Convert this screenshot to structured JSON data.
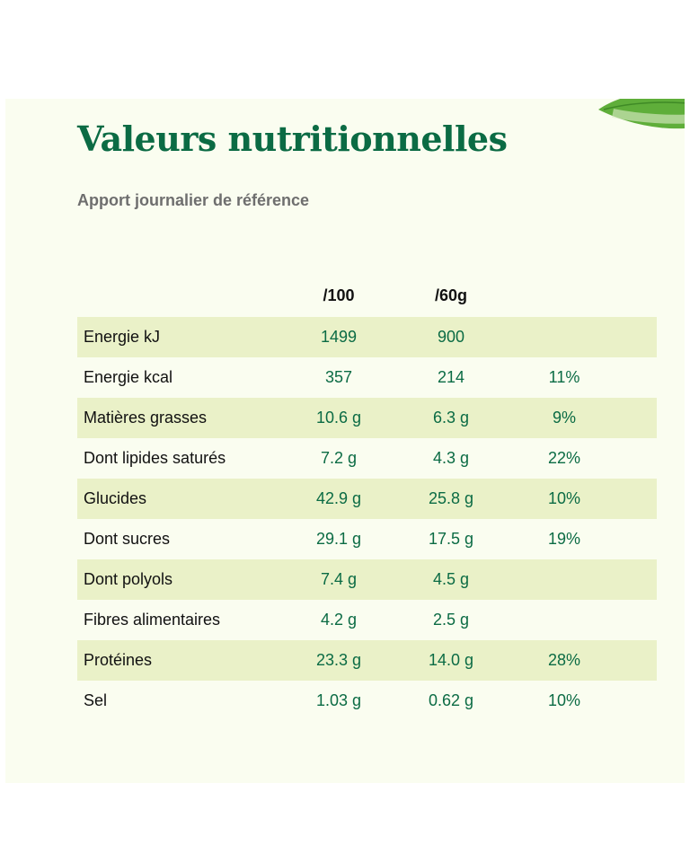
{
  "title": "Valeurs nutritionnelles",
  "subtitle": "Apport journalier de référence",
  "table": {
    "headers": [
      "",
      "/100",
      "/60g",
      ""
    ],
    "rows": [
      {
        "name": "Energie kJ",
        "per100": "1499",
        "per60": "900",
        "pct": ""
      },
      {
        "name": "Energie kcal",
        "per100": "357",
        "per60": "214",
        "pct": "11%"
      },
      {
        "name": "Matières grasses",
        "per100": "10.6 g",
        "per60": "6.3 g",
        "pct": "9%"
      },
      {
        "name": "Dont lipides saturés",
        "per100": "7.2 g",
        "per60": "4.3 g",
        "pct": "22%"
      },
      {
        "name": "Glucides",
        "per100": "42.9 g",
        "per60": "25.8 g",
        "pct": "10%"
      },
      {
        "name": "Dont sucres",
        "per100": "29.1 g",
        "per60": "17.5 g",
        "pct": "19%"
      },
      {
        "name": "Dont polyols",
        "per100": "7.4 g",
        "per60": "4.5 g",
        "pct": ""
      },
      {
        "name": "Fibres alimentaires",
        "per100": "4.2 g",
        "per60": "2.5 g",
        "pct": ""
      },
      {
        "name": "Protéines",
        "per100": "23.3 g",
        "per60": "14.0 g",
        "pct": "28%"
      },
      {
        "name": "Sel",
        "per100": "1.03 g",
        "per60": "0.62 g",
        "pct": "10%"
      }
    ]
  },
  "colors": {
    "accent": "#0b6b44",
    "panel": "#fafdf0",
    "row_shade": "#eaf1c8",
    "subtitle": "#6e6e6e"
  },
  "decoration": {
    "icon": "leaf-icon"
  }
}
